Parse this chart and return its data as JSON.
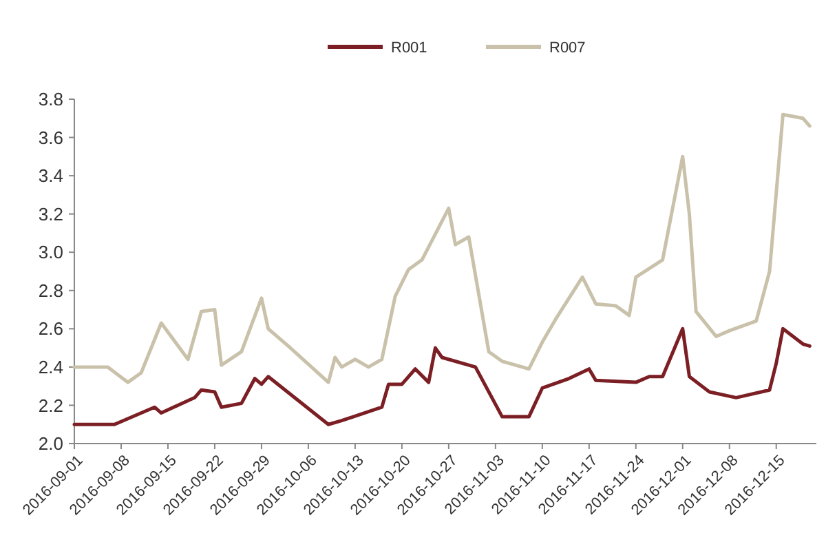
{
  "chart_data": {
    "type": "line",
    "legend": "top",
    "line_style": "solid",
    "xlim": [
      "2016-09-01",
      "2016-12-21"
    ],
    "xticks": [
      "2016-09-01",
      "2016-09-08",
      "2016-09-15",
      "2016-09-22",
      "2016-09-29",
      "2016-10-06",
      "2016-10-13",
      "2016-10-20",
      "2016-10-27",
      "2016-11-03",
      "2016-11-10",
      "2016-11-17",
      "2016-11-24",
      "2016-12-01",
      "2016-12-08",
      "2016-12-15"
    ],
    "ylim": [
      2,
      3.8
    ],
    "yticks": [
      {
        "value": 2,
        "label": "2.0"
      },
      2.2,
      2.4,
      2.6,
      2.8,
      {
        "value": 3,
        "label": "3.0"
      },
      3.2,
      3.4,
      3.6,
      3.8
    ],
    "series": [
      {
        "name": "R001",
        "color": "#7b1f24",
        "x": [
          "2016-09-01",
          "2016-09-07",
          "2016-09-13",
          "2016-09-14",
          "2016-09-19",
          "2016-09-20",
          "2016-09-22",
          "2016-09-23",
          "2016-09-26",
          "2016-09-28",
          "2016-09-29",
          "2016-09-30",
          "2016-10-09",
          "2016-10-11",
          "2016-10-17",
          "2016-10-18",
          "2016-10-20",
          "2016-10-22",
          "2016-10-24",
          "2016-10-25",
          "2016-10-26",
          "2016-10-31",
          "2016-11-04",
          "2016-11-08",
          "2016-11-10",
          "2016-11-14",
          "2016-11-17",
          "2016-11-18",
          "2016-11-24",
          "2016-11-26",
          "2016-11-28",
          "2016-12-01",
          "2016-12-02",
          "2016-12-05",
          "2016-12-09",
          "2016-12-14",
          "2016-12-15",
          "2016-12-16",
          "2016-12-19",
          "2016-12-20"
        ],
        "values": [
          2.1,
          2.1,
          2.19,
          2.16,
          2.24,
          2.28,
          2.27,
          2.19,
          2.21,
          2.34,
          2.31,
          2.35,
          2.1,
          2.12,
          2.19,
          2.31,
          2.31,
          2.39,
          2.32,
          2.5,
          2.45,
          2.4,
          2.14,
          2.14,
          2.29,
          2.34,
          2.39,
          2.33,
          2.32,
          2.35,
          2.35,
          2.6,
          2.35,
          2.27,
          2.24,
          2.28,
          2.42,
          2.6,
          2.52,
          2.51
        ]
      },
      {
        "name": "R007",
        "color": "#c9c1aa",
        "x": [
          "2016-09-01",
          "2016-09-06",
          "2016-09-09",
          "2016-09-11",
          "2016-09-14",
          "2016-09-18",
          "2016-09-20",
          "2016-09-22",
          "2016-09-23",
          "2016-09-26",
          "2016-09-29",
          "2016-09-30",
          "2016-10-03",
          "2016-10-09",
          "2016-10-10",
          "2016-10-11",
          "2016-10-13",
          "2016-10-15",
          "2016-10-17",
          "2016-10-19",
          "2016-10-21",
          "2016-10-23",
          "2016-10-27",
          "2016-10-28",
          "2016-10-30",
          "2016-11-02",
          "2016-11-04",
          "2016-11-08",
          "2016-11-10",
          "2016-11-12",
          "2016-11-16",
          "2016-11-18",
          "2016-11-21",
          "2016-11-23",
          "2016-11-24",
          "2016-11-28",
          "2016-12-01",
          "2016-12-02",
          "2016-12-03",
          "2016-12-06",
          "2016-12-08",
          "2016-12-12",
          "2016-12-14",
          "2016-12-16",
          "2016-12-19",
          "2016-12-20"
        ],
        "values": [
          2.4,
          2.4,
          2.32,
          2.37,
          2.63,
          2.44,
          2.69,
          2.7,
          2.41,
          2.48,
          2.76,
          2.6,
          2.51,
          2.32,
          2.45,
          2.4,
          2.44,
          2.4,
          2.44,
          2.77,
          2.91,
          2.96,
          3.23,
          3.04,
          3.08,
          2.48,
          2.43,
          2.39,
          2.53,
          2.65,
          2.87,
          2.73,
          2.72,
          2.67,
          2.87,
          2.96,
          3.5,
          3.2,
          2.69,
          2.56,
          2.59,
          2.64,
          2.9,
          3.72,
          3.7,
          3.66
        ]
      }
    ]
  }
}
